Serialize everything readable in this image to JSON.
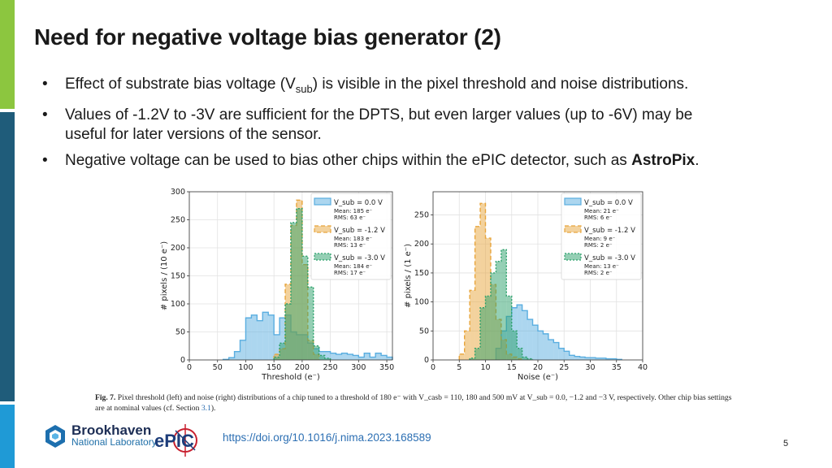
{
  "slide": {
    "title": "Need for negative voltage bias generator (2)",
    "bullets": [
      {
        "pre": "Effect of substrate bias voltage (V",
        "sub": "sub",
        "post": ") is visible in the pixel threshold and noise distributions."
      },
      {
        "text_line1": "Values of -1.2V to -3V are sufficient for the DPTS, but even larger values (up to -6V) may be",
        "text_line2": "useful for later versions of the sensor."
      },
      {
        "pre": "Negative voltage can be used to bias other chips within the ePIC detector, such as ",
        "bold": "AstroPix",
        "post": "."
      }
    ],
    "caption": {
      "label": "Fig. 7.",
      "text": "Pixel threshold (left) and noise (right) distributions of a chip tuned to a threshold of 180 e⁻ with V_casb = 110, 180 and 500 mV at V_sub = 0.0, −1.2 and −3 V, respectively. Other chip bias settings are at nominal values (cf. Section ",
      "section_ref": "3.1",
      "text_end": ")."
    },
    "doi": "https://doi.org/10.1016/j.nima.2023.168589",
    "page_number": "5",
    "logos": {
      "bnl_name": "Brookhaven",
      "bnl_sub": "National Laboratory",
      "epic_text": "ePIC"
    }
  },
  "chart_data": [
    {
      "type": "histogram",
      "xlabel": "Threshold (e⁻)",
      "ylabel": "# pixels / (10 e⁻)",
      "xlim": [
        0,
        360
      ],
      "ylim": [
        0,
        300
      ],
      "xticks": [
        0,
        50,
        100,
        150,
        200,
        250,
        300,
        350
      ],
      "yticks": [
        0,
        50,
        100,
        150,
        200,
        250,
        300
      ],
      "bin_width": 10,
      "grid": true,
      "legend_position": "top-right",
      "series": [
        {
          "name": "V_sub = 0.0 V",
          "mean": "185 e⁻",
          "rms": "63 e⁻",
          "color": "#5aaee0",
          "bin_start": 60,
          "values": [
            1,
            4,
            15,
            35,
            75,
            80,
            70,
            85,
            80,
            45,
            75,
            80,
            50,
            45,
            45,
            30,
            20,
            15,
            15,
            12,
            10,
            12,
            10,
            8,
            5,
            12,
            5,
            12,
            8,
            5
          ]
        },
        {
          "name": "V_sub = -1.2 V",
          "mean": "183 e⁻",
          "rms": "13 e⁻",
          "color": "#e8a53c",
          "bin_start": 150,
          "values": [
            10,
            20,
            135,
            240,
            285,
            170,
            35,
            10
          ]
        },
        {
          "name": "V_sub = -3.0 V",
          "mean": "184 e⁻",
          "rms": "17 e⁻",
          "color": "#2aa06a",
          "bin_start": 150,
          "values": [
            5,
            30,
            100,
            245,
            270,
            185,
            130,
            25,
            8,
            3
          ]
        }
      ]
    },
    {
      "type": "histogram",
      "xlabel": "Noise (e⁻)",
      "ylabel": "# pixels / (1 e⁻)",
      "xlim": [
        0,
        40
      ],
      "ylim": [
        0,
        290
      ],
      "xticks": [
        0,
        5,
        10,
        15,
        20,
        25,
        30,
        35,
        40
      ],
      "yticks": [
        0,
        50,
        100,
        150,
        200,
        250
      ],
      "bin_width": 1,
      "grid": true,
      "legend_position": "top-right",
      "series": [
        {
          "name": "V_sub = 0.0 V",
          "mean": "21 e⁻",
          "rms": "6 e⁻",
          "color": "#5aaee0",
          "bin_start": 12,
          "values": [
            20,
            50,
            75,
            90,
            95,
            85,
            70,
            60,
            50,
            45,
            35,
            30,
            20,
            15,
            8,
            6,
            5,
            4,
            4,
            3,
            3,
            2,
            2,
            1
          ]
        },
        {
          "name": "V_sub = -1.2 V",
          "mean": "9 e⁻",
          "rms": "2 e⁻",
          "color": "#e8a53c",
          "bin_start": 5,
          "values": [
            10,
            50,
            120,
            230,
            270,
            210,
            130,
            70,
            35,
            10,
            5,
            2
          ]
        },
        {
          "name": "V_sub = -3.0 V",
          "mean": "13 e⁻",
          "rms": "2 e⁻",
          "color": "#2aa06a",
          "bin_start": 7,
          "values": [
            3,
            20,
            90,
            110,
            150,
            170,
            190,
            110,
            50,
            20,
            5,
            2
          ]
        }
      ]
    }
  ]
}
